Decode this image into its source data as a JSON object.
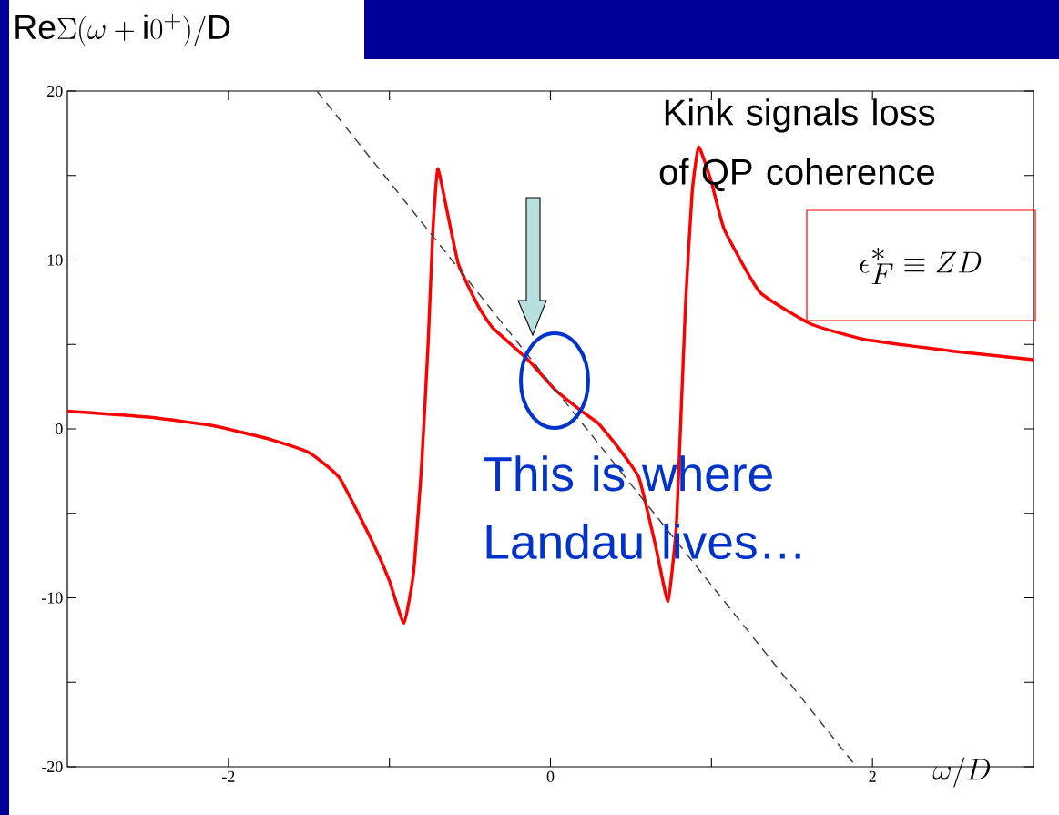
{
  "chart_data": {
    "type": "line",
    "xlabel": "\\omega/D",
    "ylabel": "\\mathrm{Re}\\Sigma(\\omega+\\mathrm{i}0^{+})/\\mathrm{D}",
    "xlim": [
      -3,
      3
    ],
    "ylim": [
      -20,
      20
    ],
    "xticks": [
      -2,
      {
        "value": -1,
        "label": null
      },
      0,
      {
        "value": 1,
        "label": null
      },
      2
    ],
    "yticks": [
      -20,
      {
        "value": -15,
        "label": null
      },
      -10,
      {
        "value": -5,
        "label": null
      },
      0,
      {
        "value": 5,
        "label": null
      },
      10,
      {
        "value": 15,
        "label": null
      },
      20
    ],
    "series": [
      {
        "color": "#ff0000",
        "line_style": "solid",
        "x": [
          -3,
          -2.5,
          -2.1,
          -1.73,
          -1.5,
          -1.31,
          -1.1,
          -1.0,
          -0.91,
          -0.85,
          -0.8,
          -0.76,
          -0.73,
          -0.7,
          -0.64,
          -0.57,
          -0.45,
          -0.36,
          -0.14,
          0.03,
          0.2,
          0.3,
          0.42,
          0.55,
          0.65,
          0.73,
          0.78,
          0.8,
          0.84,
          0.88,
          0.92,
          1.0,
          1.08,
          1.3,
          1.62,
          1.95,
          2.5,
          3.0
        ],
        "values": [
          1.05,
          0.7,
          0.2,
          -0.65,
          -1.4,
          -2.9,
          -6.8,
          -9,
          -11.5,
          -8.5,
          -2.1,
          5,
          11.8,
          15.4,
          12.8,
          9.7,
          7.3,
          6.0,
          4.1,
          2.3,
          1.0,
          0.3,
          -1.1,
          -2.9,
          -6.8,
          -10.2,
          -6,
          -1.7,
          7.6,
          14,
          16.7,
          14.6,
          11.8,
          8.1,
          6.2,
          5.3,
          4.6,
          4.1
        ]
      },
      {
        "color": "#404040",
        "line_style": "dashed",
        "x": [
          -1.45,
          1.9
        ],
        "values": [
          20,
          -20
        ]
      }
    ],
    "annotations": [
      "Kink signals loss of QP coherence",
      "This is where Landau lives…",
      "\\epsilon_F^*\\equiv ZD"
    ]
  }
}
